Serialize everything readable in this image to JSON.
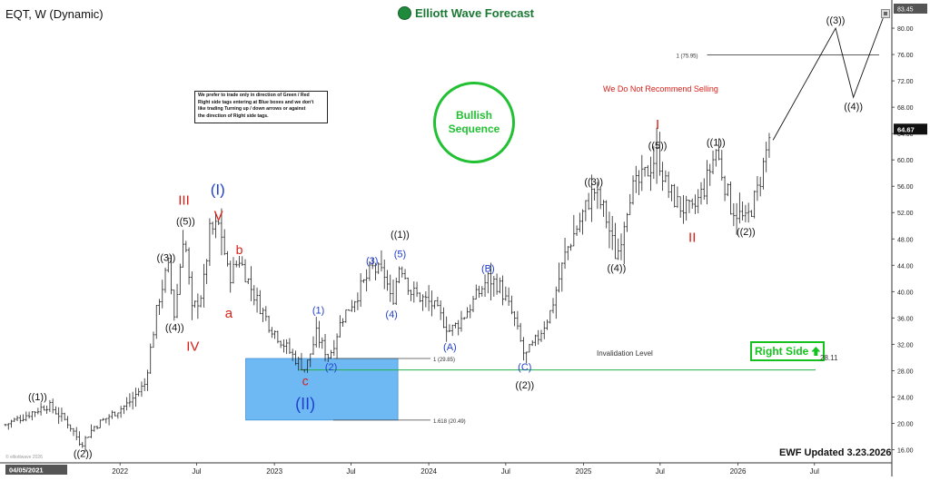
{
  "header": {
    "symbol_title": "EQT, W (Dynamic)",
    "brand_name": "Elliott Wave Forecast"
  },
  "note_box": {
    "lines": [
      "We prefer to trade only in direction of Green / Red",
      "Right side tags entering at Blue boxes and we don't",
      "like trading Turning up / down arrows or against",
      "the direction of Right side tags."
    ]
  },
  "badges": {
    "bullish_line1": "Bullish",
    "bullish_line2": "Sequence",
    "bullish_color": "#22c033",
    "not_recommend": "We Do Not Recommend Selling",
    "right_side": "Right Side",
    "right_side_color": "#15c21d",
    "updated": "EWF Updated 3.23.2026",
    "invalidation": "Invalidation Level",
    "invalidation_value": "28.11",
    "watermark": "© elliottwave 2026"
  },
  "colors": {
    "label_blue": "#1f3fcc",
    "label_red": "#d91e18",
    "label_black": "#111111",
    "blue_box": "#4aa8f0",
    "invalidation_line": "#22b14c",
    "candle": "#222222"
  },
  "chart_data": {
    "type": "ohlc",
    "ylim": [
      14.0,
      83.45
    ],
    "xlim": [
      "2021-04-05",
      "2026-12-31"
    ],
    "y_ticks": [
      16.0,
      20.0,
      24.0,
      28.0,
      32.0,
      36.0,
      40.0,
      44.0,
      48.0,
      52.0,
      56.0,
      60.0,
      64.0,
      68.0,
      72.0,
      76.0,
      80.0
    ],
    "y_tick_labels": [
      "16.00",
      "20.00",
      "24.00",
      "28.00",
      "32.00",
      "36.00",
      "40.00",
      "44.00",
      "48.00",
      "52.00",
      "56.00",
      "60.00",
      "64.00",
      "68.00",
      "72.00",
      "76.00",
      "80.00"
    ],
    "y_top_label": "83.45",
    "current_price": 64.67,
    "current_price_label": "64.67",
    "x_labels": [
      {
        "t": "2021-04-05",
        "label": "04/05/2021"
      },
      {
        "t": "2022-01-01",
        "label": "2022"
      },
      {
        "t": "2022-07-01",
        "label": "Jul"
      },
      {
        "t": "2023-01-01",
        "label": "2023"
      },
      {
        "t": "2023-07-01",
        "label": "Jul"
      },
      {
        "t": "2024-01-01",
        "label": "2024"
      },
      {
        "t": "2024-07-01",
        "label": "Jul"
      },
      {
        "t": "2025-01-01",
        "label": "2025"
      },
      {
        "t": "2025-07-01",
        "label": "Jul"
      },
      {
        "t": "2026-01-01",
        "label": "2026"
      },
      {
        "t": "2026-07-01",
        "label": "Jul"
      }
    ],
    "price_path": [
      [
        "2021-04-05",
        19.8
      ],
      [
        "2021-06-01",
        21.5
      ],
      [
        "2021-07-15",
        22.8
      ],
      [
        "2021-09-01",
        20.0
      ],
      [
        "2021-10-01",
        16.8
      ],
      [
        "2021-11-01",
        19.5
      ],
      [
        "2021-12-15",
        21.5
      ],
      [
        "2022-01-20",
        23.0
      ],
      [
        "2022-03-01",
        26.0
      ],
      [
        "2022-04-01",
        38.5
      ],
      [
        "2022-04-25",
        44.0
      ],
      [
        "2022-05-10",
        36.0
      ],
      [
        "2022-06-01",
        49.5
      ],
      [
        "2022-06-20",
        37.0
      ],
      [
        "2022-07-15",
        40.0
      ],
      [
        "2022-08-01",
        49.0
      ],
      [
        "2022-08-25",
        50.2
      ],
      [
        "2022-09-15",
        42.0
      ],
      [
        "2022-10-10",
        45.0
      ],
      [
        "2022-11-10",
        40.0
      ],
      [
        "2022-12-20",
        35.0
      ],
      [
        "2023-02-10",
        30.5
      ],
      [
        "2023-03-15",
        28.2
      ],
      [
        "2023-04-10",
        33.5
      ],
      [
        "2023-05-10",
        30.0
      ],
      [
        "2023-06-10",
        36.0
      ],
      [
        "2023-07-15",
        39.5
      ],
      [
        "2023-08-20",
        43.5
      ],
      [
        "2023-09-20",
        42.5
      ],
      [
        "2023-10-05",
        38.0
      ],
      [
        "2023-10-25",
        44.5
      ],
      [
        "2023-11-20",
        40.0
      ],
      [
        "2024-01-10",
        38.0
      ],
      [
        "2024-02-20",
        34.0
      ],
      [
        "2024-03-15",
        35.5
      ],
      [
        "2024-04-15",
        38.5
      ],
      [
        "2024-05-20",
        42.0
      ],
      [
        "2024-06-15",
        41.0
      ],
      [
        "2024-07-20",
        36.0
      ],
      [
        "2024-08-15",
        30.0
      ],
      [
        "2024-09-15",
        33.0
      ],
      [
        "2024-10-15",
        37.0
      ],
      [
        "2024-11-20",
        46.0
      ],
      [
        "2025-01-25",
        55.5
      ],
      [
        "2025-02-20",
        52.0
      ],
      [
        "2025-03-20",
        45.0
      ],
      [
        "2025-04-20",
        55.0
      ],
      [
        "2025-05-20",
        57.0
      ],
      [
        "2025-06-25",
        61.0
      ],
      [
        "2025-07-15",
        56.0
      ],
      [
        "2025-08-15",
        53.0
      ],
      [
        "2025-09-15",
        52.0
      ],
      [
        "2025-10-15",
        56.0
      ],
      [
        "2025-11-10",
        61.5
      ],
      [
        "2025-12-15",
        53.0
      ],
      [
        "2026-01-20",
        50.5
      ],
      [
        "2026-02-15",
        55.0
      ],
      [
        "2026-03-05",
        60.0
      ],
      [
        "2026-03-20",
        64.67
      ]
    ],
    "projection": [
      [
        "2026-03-25",
        63.0
      ],
      [
        "2026-08-20",
        80.0
      ],
      [
        "2026-10-01",
        69.5
      ],
      [
        "2026-12-10",
        81.5
      ]
    ],
    "fib_levels": [
      {
        "label": "1 (75.95)",
        "value": 75.95,
        "from": "2025-10-20",
        "to": "2026-12-01"
      },
      {
        "label": "1 (29.85)",
        "value": 29.85,
        "from": "2023-05-20",
        "to": "2024-01-05"
      },
      {
        "label": "1.618 (20.49)",
        "value": 20.49,
        "from": "2023-05-20",
        "to": "2024-01-05"
      }
    ],
    "blue_box": {
      "from": "2022-10-25",
      "to": "2023-10-20",
      "low": 20.49,
      "high": 29.85
    },
    "invalidation_level": 28.11,
    "wave_labels": [
      {
        "text": "((1))",
        "t": "2021-06-20",
        "v": 22.8,
        "pos": "above",
        "color": "black",
        "size": 11
      },
      {
        "text": "((2))",
        "t": "2021-10-05",
        "v": 16.8,
        "pos": "below",
        "color": "black",
        "size": 11
      },
      {
        "text": "((3))",
        "t": "2022-04-20",
        "v": 44.0,
        "pos": "above",
        "color": "black",
        "size": 11
      },
      {
        "text": "((4))",
        "t": "2022-05-10",
        "v": 36.0,
        "pos": "below",
        "color": "black",
        "size": 11
      },
      {
        "text": "((5))",
        "t": "2022-06-05",
        "v": 49.5,
        "pos": "above",
        "color": "black",
        "size": 11
      },
      {
        "text": "III",
        "t": "2022-06-01",
        "v": 52.5,
        "pos": "above",
        "color": "red",
        "size": 15
      },
      {
        "text": "IV",
        "t": "2022-06-22",
        "v": 33.5,
        "pos": "below",
        "color": "red",
        "size": 15
      },
      {
        "text": "V",
        "t": "2022-08-22",
        "v": 50.2,
        "pos": "above",
        "color": "red",
        "size": 15
      },
      {
        "text": "(I)",
        "t": "2022-08-20",
        "v": 54.0,
        "pos": "above",
        "color": "blue",
        "size": 17
      },
      {
        "text": "b",
        "t": "2022-10-10",
        "v": 45.0,
        "pos": "above",
        "color": "red",
        "size": 14
      },
      {
        "text": "a",
        "t": "2022-09-15",
        "v": 38.5,
        "pos": "below",
        "color": "red",
        "size": 15
      },
      {
        "text": "c",
        "t": "2023-03-15",
        "v": 28.1,
        "pos": "below",
        "color": "red",
        "size": 14
      },
      {
        "text": "(II)",
        "t": "2023-03-15",
        "v": 25.0,
        "pos": "below",
        "color": "blue",
        "size": 18
      },
      {
        "text": "(1)",
        "t": "2023-04-15",
        "v": 36.0,
        "pos": "above",
        "color": "blue",
        "size": 11
      },
      {
        "text": "(2)",
        "t": "2023-05-15",
        "v": 30.0,
        "pos": "below",
        "color": "blue",
        "size": 11
      },
      {
        "text": "(3)",
        "t": "2023-08-20",
        "v": 43.5,
        "pos": "above",
        "color": "blue",
        "size": 11
      },
      {
        "text": "(4)",
        "t": "2023-10-05",
        "v": 38.0,
        "pos": "below",
        "color": "blue",
        "size": 11
      },
      {
        "text": "(5)",
        "t": "2023-10-25",
        "v": 44.5,
        "pos": "above",
        "color": "blue",
        "size": 11
      },
      {
        "text": "((1))",
        "t": "2023-10-25",
        "v": 47.5,
        "pos": "above",
        "color": "black",
        "size": 11
      },
      {
        "text": "(A)",
        "t": "2024-02-20",
        "v": 33.0,
        "pos": "below",
        "color": "blue",
        "size": 11
      },
      {
        "text": "(B)",
        "t": "2024-05-20",
        "v": 42.3,
        "pos": "above",
        "color": "blue",
        "size": 11
      },
      {
        "text": "(C)",
        "t": "2024-08-15",
        "v": 30.0,
        "pos": "below",
        "color": "blue",
        "size": 11
      },
      {
        "text": "((2))",
        "t": "2024-08-15",
        "v": 27.2,
        "pos": "below",
        "color": "black",
        "size": 11
      },
      {
        "text": "((3))",
        "t": "2025-01-25",
        "v": 55.5,
        "pos": "above",
        "color": "black",
        "size": 11
      },
      {
        "text": "((4))",
        "t": "2025-03-20",
        "v": 45.0,
        "pos": "below",
        "color": "black",
        "size": 11
      },
      {
        "text": "((5))",
        "t": "2025-06-25",
        "v": 61.0,
        "pos": "above",
        "color": "black",
        "size": 11
      },
      {
        "text": "I",
        "t": "2025-06-25",
        "v": 64.0,
        "pos": "above",
        "color": "red",
        "size": 15
      },
      {
        "text": "II",
        "t": "2025-09-15",
        "v": 50.0,
        "pos": "below",
        "color": "red",
        "size": 15
      },
      {
        "text": "((1))",
        "t": "2025-11-10",
        "v": 61.5,
        "pos": "above",
        "color": "black",
        "size": 11
      },
      {
        "text": "((2))",
        "t": "2026-01-20",
        "v": 50.5,
        "pos": "below",
        "color": "black",
        "size": 11
      },
      {
        "text": "((3))",
        "t": "2026-08-20",
        "v": 80.0,
        "pos": "above",
        "color": "black",
        "size": 11
      },
      {
        "text": "((4))",
        "t": "2026-10-01",
        "v": 69.5,
        "pos": "below",
        "color": "black",
        "size": 11
      }
    ]
  }
}
